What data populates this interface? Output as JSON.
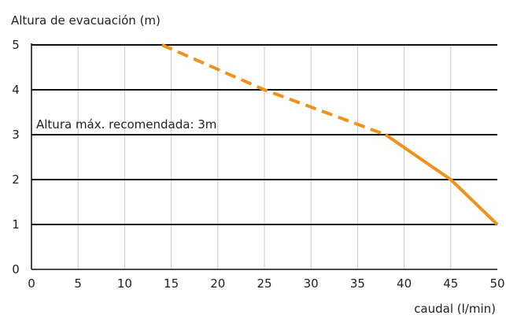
{
  "chart_data": {
    "type": "line",
    "ylabel": "Altura de evacuación (m)",
    "xlabel": "caudal (l/min)",
    "xlim": [
      0,
      50
    ],
    "ylim": [
      0,
      5
    ],
    "x_ticks": [
      "0",
      "5",
      "10",
      "15",
      "20",
      "25",
      "30",
      "35",
      "40",
      "45",
      "50"
    ],
    "y_ticks": [
      "0",
      "1",
      "2",
      "3",
      "4",
      "5"
    ],
    "grid": "vertical gridlines at every x tick, bold horizontal lines at every y tick",
    "annotation": "Altura máx. recomendada: 3m",
    "line_color": "#f39019",
    "series": [
      {
        "segments": [
          {
            "style": "dashed",
            "points": [
              [
                14,
                5
              ],
              [
                25,
                4
              ],
              [
                38,
                3
              ]
            ]
          },
          {
            "style": "solid",
            "points": [
              [
                38,
                3
              ],
              [
                45,
                2
              ],
              [
                50,
                1
              ]
            ]
          }
        ]
      }
    ]
  }
}
